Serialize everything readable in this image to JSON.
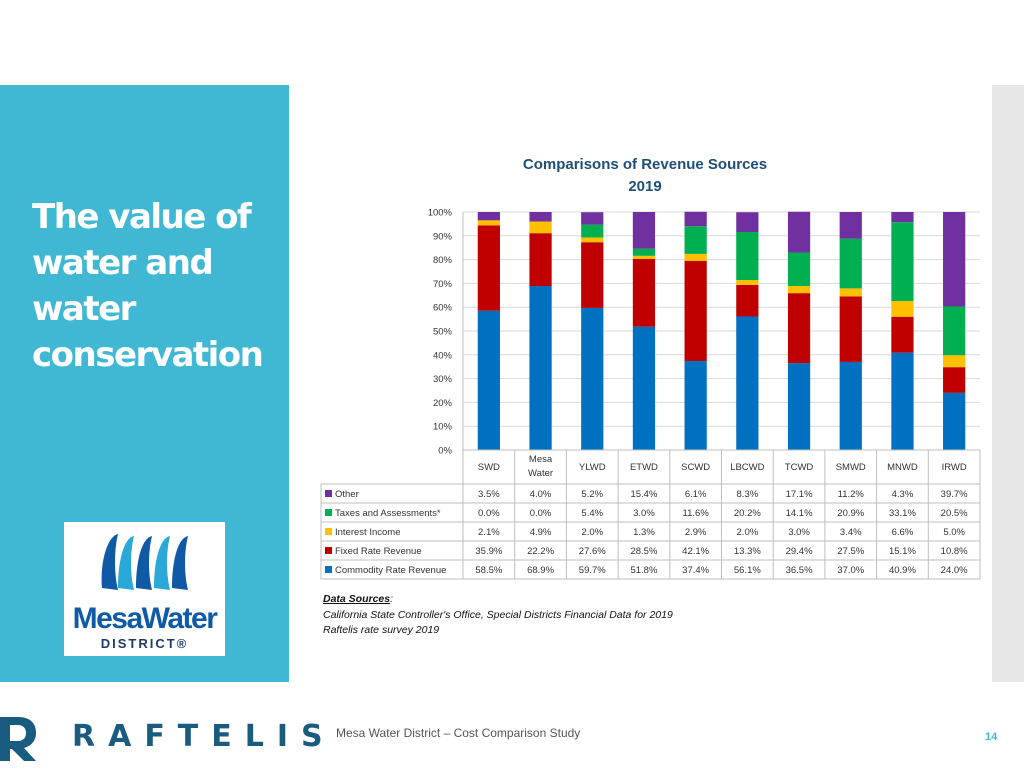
{
  "slide": {
    "title": "The value of\nwater and\nwater\nconservation",
    "footer": "Mesa Water District – Cost Comparison Study",
    "page_number": "14",
    "brand": "RAFTELIS"
  },
  "logo": {
    "name": "MesaWater",
    "subtitle": "DISTRICT®"
  },
  "sources": {
    "heading": "Data Sources",
    "lines": [
      "California State Controller's Office, Special Districts Financial Data for 2019",
      "Raftelis rate survey 2019"
    ]
  },
  "colors": {
    "panel": "#40b8d3",
    "other": "#7030a0",
    "taxes": "#00b050",
    "interest": "#ffc000",
    "fixed": "#c00000",
    "commodity": "#0070c0"
  },
  "chart_data": {
    "type": "bar",
    "stacked": true,
    "title": "Comparisons of Revenue Sources\n2019",
    "categories": [
      "SWD",
      "Mesa Water",
      "YLWD",
      "ETWD",
      "SCWD",
      "LBCWD",
      "TCWD",
      "SMWD",
      "MNWD",
      "IRWD"
    ],
    "ylim": [
      0,
      100
    ],
    "yticks": [
      "0%",
      "10%",
      "20%",
      "30%",
      "40%",
      "50%",
      "60%",
      "70%",
      "80%",
      "90%",
      "100%"
    ],
    "grid": true,
    "series": [
      {
        "name": "Commodity Rate Revenue",
        "color": "#0070c0",
        "values": [
          58.5,
          68.9,
          59.7,
          51.8,
          37.4,
          56.1,
          36.5,
          37.0,
          40.9,
          24.0
        ],
        "labels": [
          "58.5%",
          "68.9%",
          "59.7%",
          "51.8%",
          "37.4%",
          "56.1%",
          "36.5%",
          "37.0%",
          "40.9%",
          "24.0%"
        ]
      },
      {
        "name": "Fixed Rate Revenue",
        "color": "#c00000",
        "values": [
          35.9,
          22.2,
          27.6,
          28.5,
          42.1,
          13.3,
          29.4,
          27.5,
          15.1,
          10.8
        ],
        "labels": [
          "35.9%",
          "22.2%",
          "27.6%",
          "28.5%",
          "42.1%",
          "13.3%",
          "29.4%",
          "27.5%",
          "15.1%",
          "10.8%"
        ]
      },
      {
        "name": "Interest Income",
        "color": "#ffc000",
        "values": [
          2.1,
          4.9,
          2.0,
          1.3,
          2.9,
          2.0,
          3.0,
          3.4,
          6.6,
          5.0
        ],
        "labels": [
          "2.1%",
          "4.9%",
          "2.0%",
          "1.3%",
          "2.9%",
          "2.0%",
          "3.0%",
          "3.4%",
          "6.6%",
          "5.0%"
        ]
      },
      {
        "name": "Taxes and Assessments*",
        "color": "#00b050",
        "values": [
          0.0,
          0.0,
          5.4,
          3.0,
          11.6,
          20.2,
          14.1,
          20.9,
          33.1,
          20.5
        ],
        "labels": [
          "0.0%",
          "0.0%",
          "5.4%",
          "3.0%",
          "11.6%",
          "20.2%",
          "14.1%",
          "20.9%",
          "33.1%",
          "20.5%"
        ]
      },
      {
        "name": "Other",
        "color": "#7030a0",
        "values": [
          3.5,
          4.0,
          5.2,
          15.4,
          6.1,
          8.3,
          17.1,
          11.2,
          4.3,
          39.7
        ],
        "labels": [
          "3.5%",
          "4.0%",
          "5.2%",
          "15.4%",
          "6.1%",
          "8.3%",
          "17.1%",
          "11.2%",
          "4.3%",
          "39.7%"
        ]
      }
    ],
    "table_row_order": [
      "Other",
      "Taxes and Assessments*",
      "Interest Income",
      "Fixed Rate Revenue",
      "Commodity Rate Revenue"
    ]
  }
}
